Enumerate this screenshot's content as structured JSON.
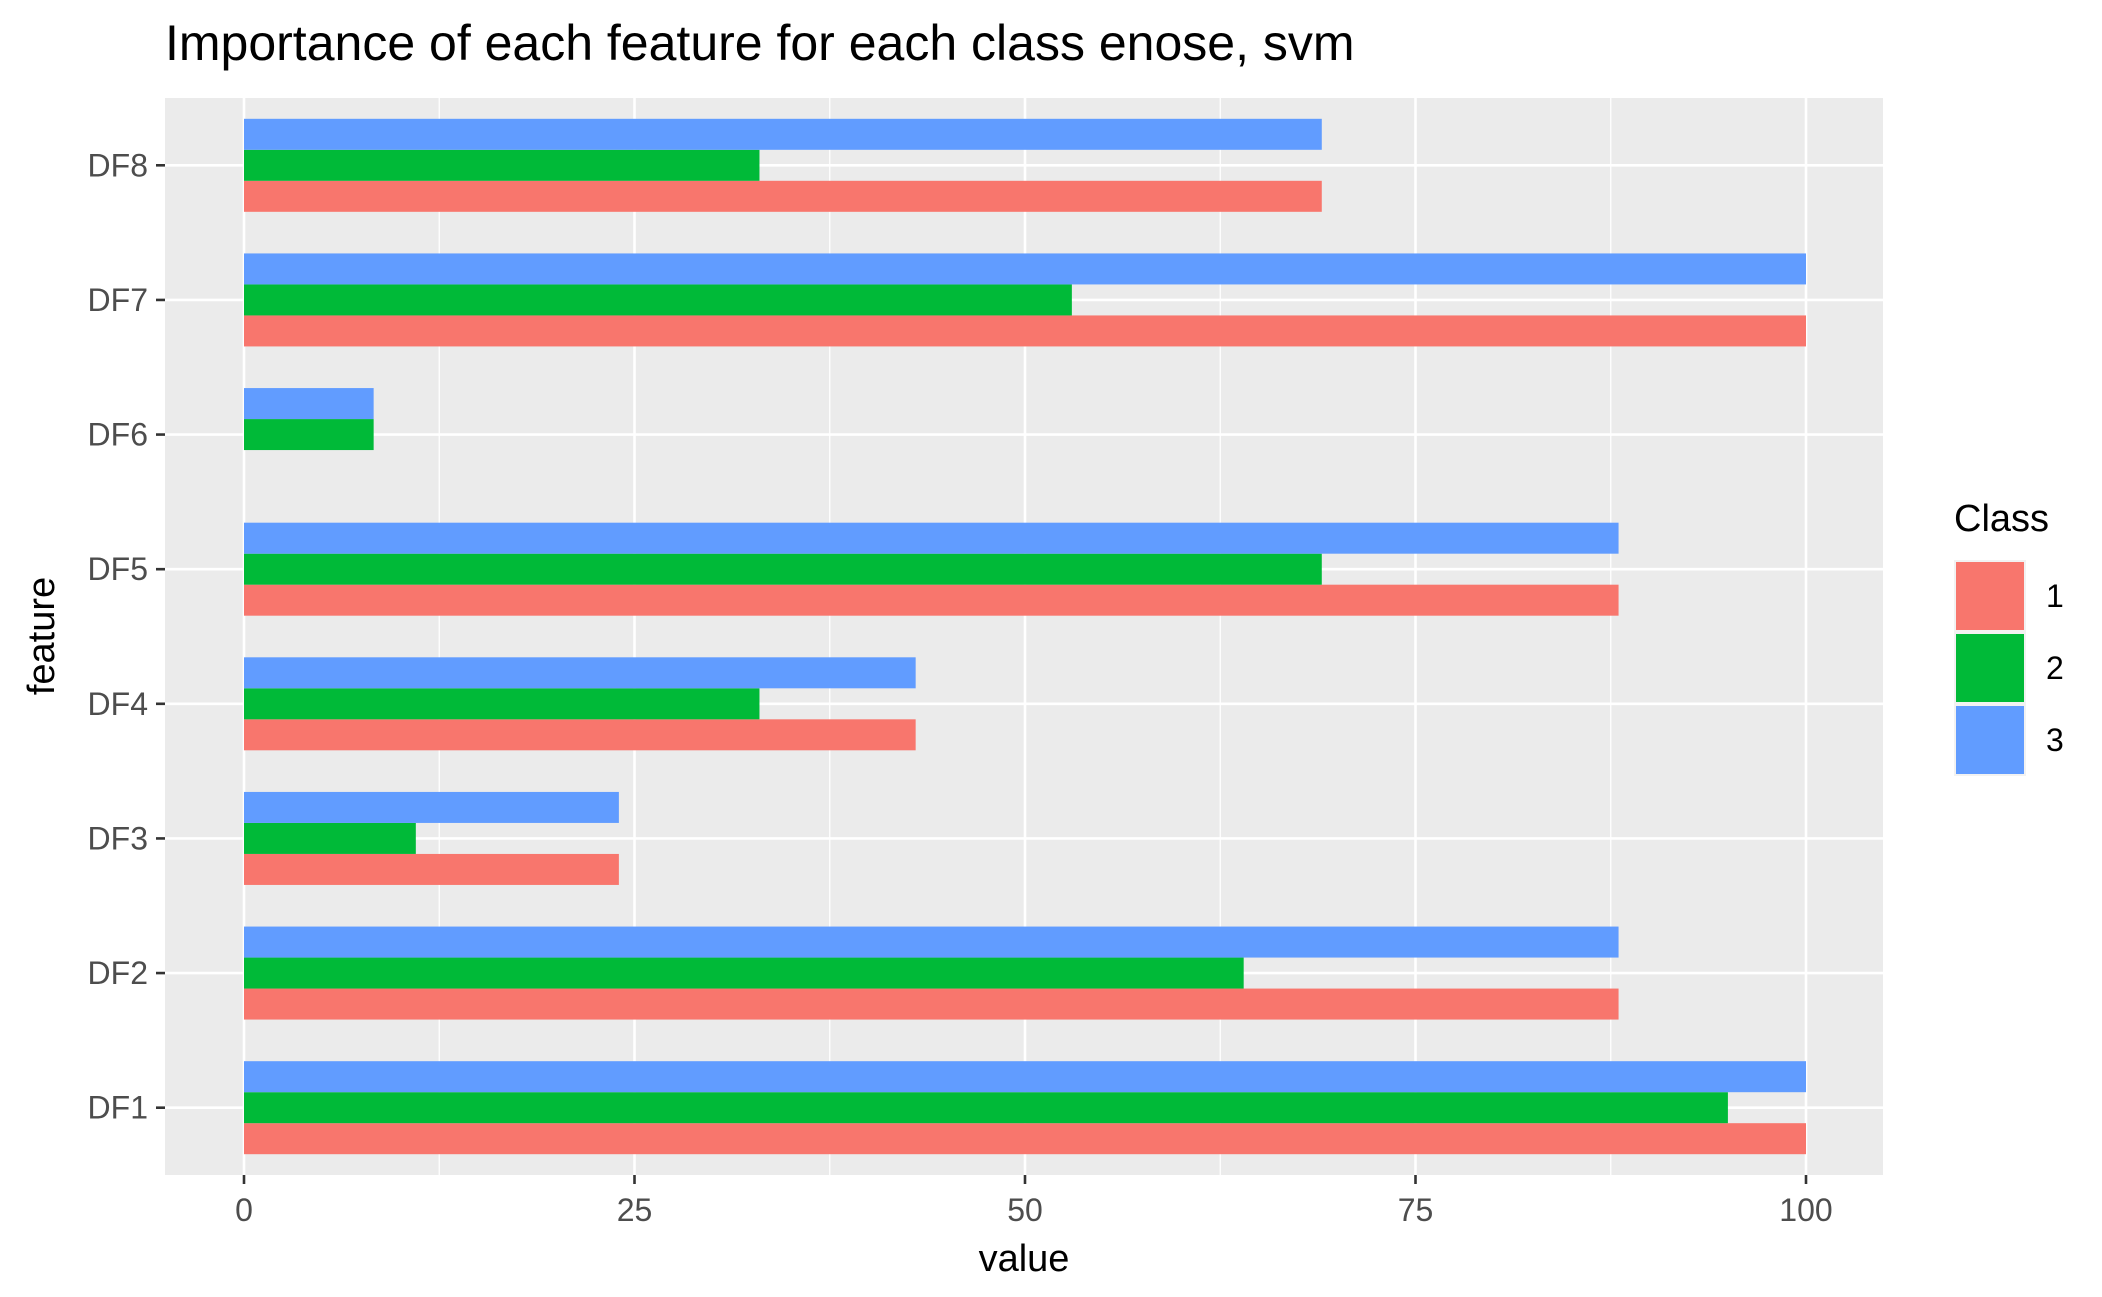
{
  "chart_data": {
    "type": "bar",
    "orientation": "horizontal",
    "title": "Importance of each feature for each class enose, svm",
    "xlabel": "value",
    "ylabel": "feature",
    "categories": [
      "DF1",
      "DF2",
      "DF3",
      "DF4",
      "DF5",
      "DF6",
      "DF7",
      "DF8"
    ],
    "xlim": [
      -5,
      105
    ],
    "x_ticks": [
      0,
      25,
      50,
      75,
      100
    ],
    "x_tick_labels": [
      "0",
      "25",
      "50",
      "75",
      "100"
    ],
    "series": [
      {
        "name": "1",
        "color": "#F8766D",
        "values": [
          100,
          88,
          24,
          43,
          88,
          0,
          100,
          69
        ]
      },
      {
        "name": "2",
        "color": "#00BA38",
        "values": [
          95,
          64,
          11,
          33,
          69,
          8.3,
          53,
          33
        ]
      },
      {
        "name": "3",
        "color": "#619CFF",
        "values": [
          100,
          88,
          24,
          43,
          88,
          8.3,
          100,
          69
        ]
      }
    ],
    "legend": {
      "title": "Class",
      "position": "right"
    },
    "grid": true,
    "panel_background": "#EBEBEB",
    "grid_color": "#FFFFFF"
  }
}
